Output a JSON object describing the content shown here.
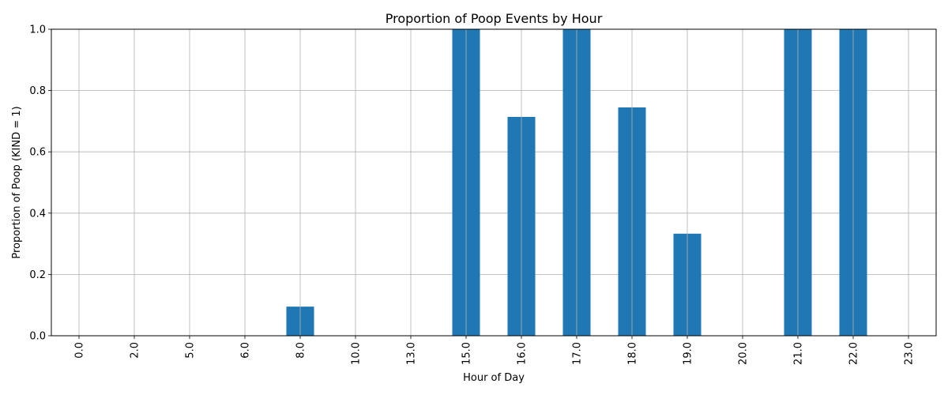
{
  "chart_data": {
    "type": "bar",
    "title": "Proportion of Poop Events by Hour",
    "xlabel": "Hour of Day",
    "ylabel": "Proportion of Poop (KIND = 1)",
    "categories": [
      "0.0",
      "2.0",
      "5.0",
      "6.0",
      "8.0",
      "10.0",
      "13.0",
      "15.0",
      "16.0",
      "17.0",
      "18.0",
      "19.0",
      "20.0",
      "21.0",
      "22.0",
      "23.0"
    ],
    "values": [
      0.0,
      0.0,
      0.0,
      0.0,
      0.095,
      0.0,
      0.0,
      1.0,
      0.714,
      1.0,
      0.745,
      0.333,
      0.0,
      1.0,
      1.0,
      0.0
    ],
    "ylim": [
      0,
      1.0
    ],
    "yticks": [
      "0.0",
      "0.2",
      "0.4",
      "0.6",
      "0.8",
      "1.0"
    ],
    "grid": true,
    "bar_color": "#1f77b4",
    "grid_color": "#b0b0b0"
  }
}
